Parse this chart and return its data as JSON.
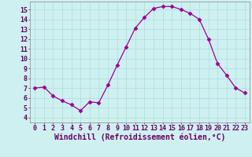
{
  "x": [
    0,
    1,
    2,
    3,
    4,
    5,
    6,
    7,
    8,
    9,
    10,
    11,
    12,
    13,
    14,
    15,
    16,
    17,
    18,
    19,
    20,
    21,
    22,
    23
  ],
  "y": [
    7.0,
    7.1,
    6.2,
    5.7,
    5.3,
    4.7,
    5.6,
    5.5,
    7.3,
    9.3,
    11.2,
    13.1,
    14.2,
    15.1,
    15.3,
    15.3,
    15.0,
    14.6,
    14.0,
    12.0,
    9.5,
    8.3,
    7.0,
    6.5
  ],
  "line_color": "#990099",
  "marker": "D",
  "marker_size": 2.5,
  "bg_color": "#cff0f0",
  "grid_color": "#aadddd",
  "xlabel": "Windchill (Refroidissement éolien,°C)",
  "xlabel_fontsize": 7,
  "tick_fontsize": 6,
  "yticks": [
    4,
    5,
    6,
    7,
    8,
    9,
    10,
    11,
    12,
    13,
    14,
    15
  ],
  "xtick_labels": [
    "0",
    "1",
    "2",
    "3",
    "4",
    "5",
    "6",
    "7",
    "8",
    "9",
    "10",
    "11",
    "12",
    "13",
    "14",
    "15",
    "16",
    "17",
    "18",
    "19",
    "20",
    "21",
    "22",
    "23"
  ],
  "ylim": [
    3.5,
    15.8
  ],
  "xlim": [
    -0.5,
    23.5
  ]
}
